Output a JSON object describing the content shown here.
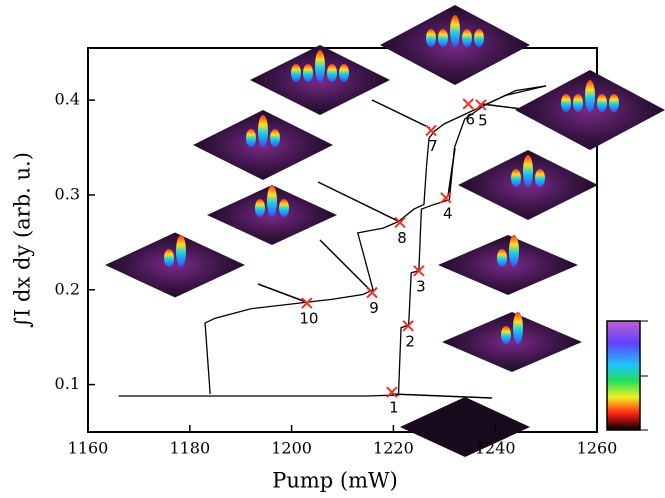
{
  "chart_data": {
    "type": "line",
    "xlabel": "Pump (mW)",
    "ylabel": "∫I dx dy (arb. u.)",
    "xlim": [
      1160,
      1260
    ],
    "ylim": [
      0.05,
      0.455
    ],
    "xticks": [
      1160,
      1180,
      1200,
      1220,
      1240,
      1260
    ],
    "yticks": [
      0.1,
      0.2,
      0.3,
      0.4
    ],
    "color": "#000000",
    "marker_color": "#e8322a",
    "series": [
      {
        "x": [
          1166,
          1175,
          1185,
          1195,
          1205,
          1215,
          1221,
          1221.5,
          1223,
          1223.5,
          1225,
          1225.5,
          1228,
          1231,
          1232,
          1234,
          1238,
          1242,
          1246,
          1250
        ],
        "y": [
          0.088,
          0.088,
          0.088,
          0.088,
          0.088,
          0.088,
          0.089,
          0.16,
          0.163,
          0.218,
          0.22,
          0.285,
          0.29,
          0.295,
          0.35,
          0.38,
          0.395,
          0.405,
          0.41,
          0.415
        ]
      },
      {
        "x": [
          1250,
          1244,
          1236,
          1230,
          1228,
          1227,
          1226.5,
          1226,
          1224,
          1221,
          1218,
          1213,
          1216,
          1214,
          1208,
          1200,
          1192,
          1185,
          1183,
          1184
        ],
        "y": [
          0.415,
          0.41,
          0.39,
          0.375,
          0.367,
          0.36,
          0.33,
          0.29,
          0.285,
          0.272,
          0.265,
          0.26,
          0.2,
          0.195,
          0.19,
          0.185,
          0.18,
          0.17,
          0.165,
          0.09
        ]
      }
    ],
    "markers": {
      "labels": [
        "1",
        "2",
        "3",
        "4",
        "5",
        "6",
        "7",
        "8",
        "9",
        "10"
      ],
      "x": [
        1219.7,
        1222.9,
        1225,
        1230.3,
        1237.2,
        1234.7,
        1227.4,
        1221.3,
        1215.8,
        1203
      ],
      "y": [
        0.092,
        0.162,
        0.22,
        0.297,
        0.395,
        0.396,
        0.368,
        0.271,
        0.197,
        0.186
      ]
    }
  }
}
